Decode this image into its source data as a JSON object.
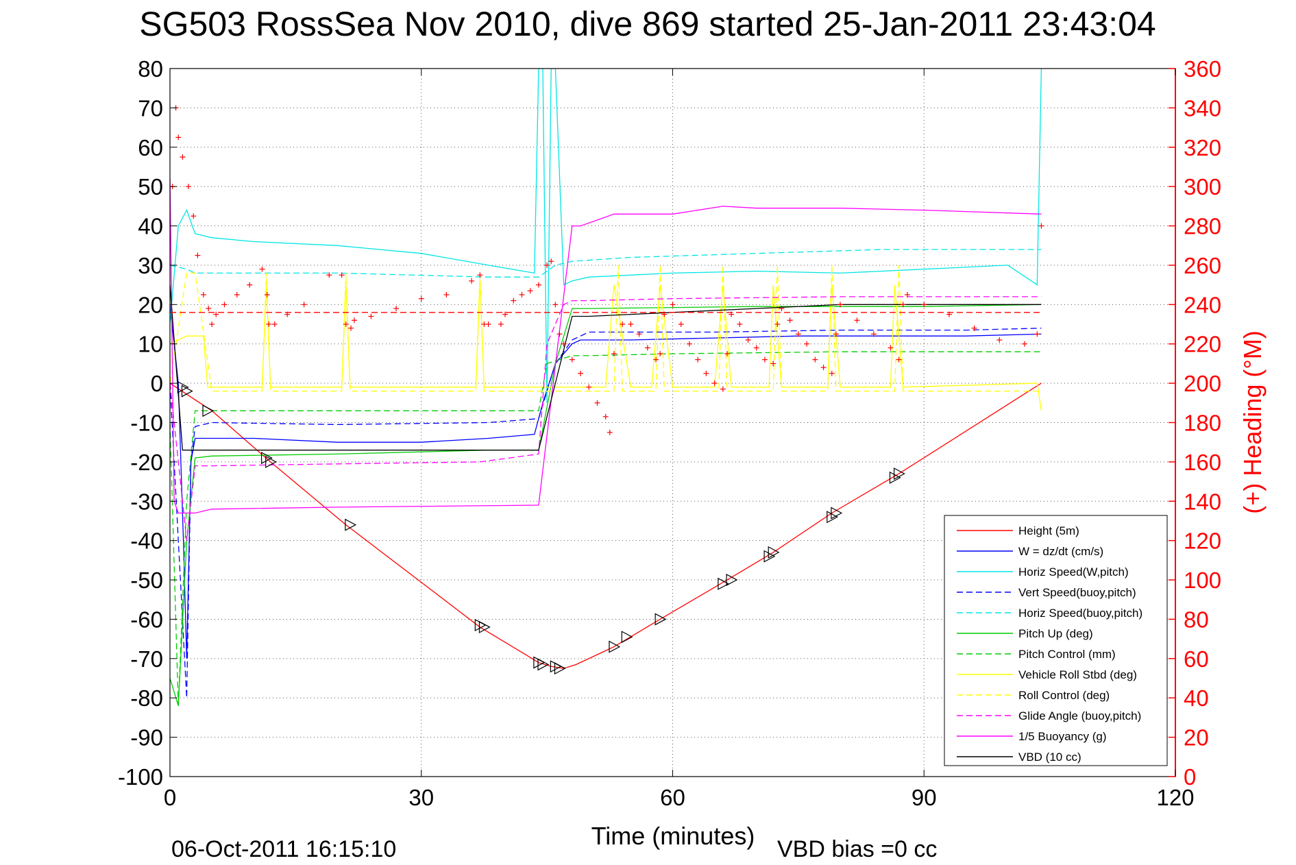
{
  "chart_data": {
    "type": "line",
    "title": "SG503 RossSea Nov 2010, dive 869 started 25-Jan-2011 23:43:04",
    "xlabel": "Time (minutes)",
    "ylabel": "",
    "y2label": "(+) Heading (°M)",
    "xlim": [
      0,
      120
    ],
    "ylim": [
      -100,
      80
    ],
    "y2lim": [
      0,
      360
    ],
    "x_ticks": [
      0,
      30,
      60,
      90,
      120
    ],
    "y_ticks": [
      80,
      70,
      60,
      50,
      40,
      30,
      20,
      10,
      0,
      -10,
      -20,
      -30,
      -40,
      -50,
      -60,
      -70,
      -80,
      -90,
      -100
    ],
    "y2_ticks": [
      360,
      340,
      320,
      300,
      280,
      260,
      240,
      220,
      200,
      180,
      160,
      140,
      120,
      100,
      80,
      60,
      40,
      20,
      0
    ],
    "grid": true,
    "legend_position": "bottom-right",
    "footer_date": "06-Oct-2011 16:15:10",
    "vbd_bias": "VBD bias =0 cc",
    "series": [
      {
        "name": "Height (5m)",
        "color": "#ff0000",
        "style": "solid",
        "x": [
          0,
          5,
          12,
          21,
          37,
          44,
          45.5,
          47,
          48.5,
          53,
          58.5,
          66.5,
          72,
          79,
          87,
          104
        ],
        "y": [
          0,
          -7,
          -20,
          -36,
          -62,
          -71,
          -72,
          -72.5,
          -71.5,
          -67,
          -60,
          -50,
          -43,
          -33,
          -23,
          0
        ]
      },
      {
        "name": "W = dz/dt (cm/s)",
        "color": "#0000ff",
        "style": "solid",
        "x": [
          0,
          1,
          1.6,
          2,
          2.5,
          3,
          5,
          10,
          20,
          30,
          38,
          43.5,
          44.5,
          46,
          48,
          49,
          55,
          65,
          75,
          85,
          95,
          104
        ],
        "y": [
          20,
          0,
          -40,
          -70,
          -20,
          -14,
          -14,
          -14,
          -15,
          -15,
          -14,
          -13,
          -5,
          5,
          10,
          11,
          11,
          11.5,
          12,
          12,
          12,
          12.5
        ]
      },
      {
        "name": "Horiz Speed(W,pitch)",
        "color": "#00e5e5",
        "style": "solid",
        "x": [
          0,
          1,
          2,
          3,
          5,
          10,
          20,
          30,
          38,
          43.5,
          44,
          44.5,
          45,
          45.5,
          46,
          47,
          48,
          50,
          60,
          70,
          80,
          90,
          100,
          103.5,
          104
        ],
        "y": [
          15,
          40,
          44,
          38,
          37,
          36,
          35,
          33,
          30,
          28,
          80,
          80,
          -5,
          80,
          80,
          25,
          26,
          27,
          28,
          28.5,
          28,
          29,
          30,
          25,
          80
        ]
      },
      {
        "name": "Vert Speed(buoy,pitch)",
        "color": "#0000ff",
        "style": "dashed",
        "x": [
          0,
          1.5,
          2,
          2.5,
          3,
          5,
          20,
          38,
          44,
          46,
          48,
          50,
          65,
          80,
          95,
          104
        ],
        "y": [
          0,
          -60,
          -80,
          -20,
          -11,
          -10,
          -10.5,
          -10,
          -9,
          5,
          11,
          13,
          13,
          13.5,
          13.5,
          14
        ]
      },
      {
        "name": "Horiz Speed(buoy,pitch)",
        "color": "#00e5e5",
        "style": "dashed",
        "x": [
          0,
          2,
          3,
          5,
          20,
          38,
          44,
          46,
          48,
          55,
          70,
          85,
          104
        ],
        "y": [
          30,
          29,
          28,
          28,
          28,
          27,
          27,
          30,
          31,
          32,
          33,
          34,
          34
        ]
      },
      {
        "name": "Pitch Up (deg)",
        "color": "#00cc00",
        "style": "solid",
        "x": [
          0,
          1,
          2,
          3,
          5,
          20,
          38,
          44,
          46,
          48,
          50,
          70,
          90,
          104
        ],
        "y": [
          -75,
          -82,
          -40,
          -19,
          -18.5,
          -18,
          -17,
          -17,
          5,
          19,
          19,
          19.5,
          19.5,
          20
        ]
      },
      {
        "name": "Pitch Control (mm)",
        "color": "#00cc00",
        "style": "dashed",
        "x": [
          0,
          1,
          2,
          3,
          5,
          20,
          44,
          45,
          48,
          50,
          60,
          80,
          104
        ],
        "y": [
          -10,
          -82,
          -30,
          -7,
          -7,
          -7,
          -7,
          5,
          7,
          7,
          7.5,
          8,
          8
        ]
      },
      {
        "name": "Vehicle Roll Stbd (deg)",
        "color": "#ffff00",
        "style": "solid",
        "x": [
          0,
          2,
          2.5,
          4,
          4.5,
          11,
          11.5,
          12,
          20.5,
          21,
          21.5,
          36.5,
          37,
          37.5,
          44,
          46,
          52,
          53,
          55,
          57.5,
          58.5,
          60,
          65,
          66,
          67,
          71.5,
          72,
          73,
          78.5,
          79,
          80,
          86,
          86.5,
          87.5,
          103.5,
          104
        ],
        "y": [
          10,
          12,
          12,
          12,
          -1,
          -1,
          25,
          -1,
          -1,
          25,
          -1,
          -1,
          26,
          -1,
          -1,
          -1,
          -1,
          25,
          -1,
          -1,
          25,
          -1,
          -1,
          25,
          -1,
          -1,
          25,
          -1,
          -1,
          25,
          -1,
          -1,
          25,
          -1,
          0,
          -7
        ]
      },
      {
        "name": "Roll Control (deg)",
        "color": "#ffff00",
        "style": "dashed",
        "x": [
          0,
          2,
          3,
          5,
          11,
          11.5,
          12,
          20.5,
          21,
          21.5,
          36.5,
          37,
          37.5,
          44,
          53,
          53.5,
          54,
          58,
          58.5,
          59,
          65.5,
          66,
          66.5,
          72,
          72.5,
          73,
          78.5,
          79,
          79.5,
          86.5,
          87,
          87.5,
          104
        ],
        "y": [
          0,
          28,
          28,
          -2,
          -2,
          28,
          -2,
          -2,
          28,
          -2,
          -2,
          28,
          -2,
          -2,
          -2,
          30,
          -2,
          -2,
          30,
          -2,
          -2,
          30,
          -2,
          -2,
          30,
          -2,
          -2,
          30,
          -2,
          -2,
          30,
          -2,
          -2
        ]
      },
      {
        "name": "Glide Angle (buoy,pitch)",
        "color": "#ff00ff",
        "style": "dashed",
        "x": [
          0,
          1.5,
          2,
          3,
          5,
          20,
          37,
          44,
          45,
          47,
          48,
          50,
          60,
          80,
          104
        ],
        "y": [
          0,
          -30,
          -40,
          -21,
          -21,
          -20.5,
          -20,
          -18,
          10,
          20,
          21,
          21,
          21.5,
          22,
          22
        ]
      },
      {
        "name": "1/5 Buoyancy (g)",
        "color": "#ff00ff",
        "style": "solid",
        "x": [
          0,
          0.5,
          1,
          2,
          3,
          5,
          20,
          44,
          48,
          49,
          53,
          60,
          66,
          70,
          80,
          90,
          104
        ],
        "y": [
          52,
          -30,
          -33,
          -33,
          -33,
          -32,
          -31.5,
          -31,
          40,
          40,
          43,
          43,
          45,
          44.5,
          44.5,
          44,
          43
        ]
      },
      {
        "name": "VBD (10 cc)",
        "color": "#000000",
        "style": "solid",
        "x": [
          0,
          1.5,
          2,
          3,
          5,
          20,
          44,
          48,
          49,
          50,
          60,
          70,
          80,
          90,
          104
        ],
        "y": [
          25,
          -17,
          -17,
          -17,
          -17,
          -17,
          -17,
          17,
          17,
          17,
          18,
          19,
          20,
          20,
          20
        ]
      },
      {
        "name": "",
        "color": "#ff0000",
        "style": "dashed",
        "x": [
          0,
          104
        ],
        "y": [
          18,
          18
        ]
      }
    ],
    "heading": {
      "color": "#ff0000",
      "x": [
        0.3,
        0.7,
        1.0,
        1.5,
        2.2,
        2.8,
        3.3,
        4.0,
        4.6,
        5.0,
        5.5,
        6.5,
        8.0,
        9.5,
        11.0,
        11.6,
        11.8,
        12.5,
        14,
        16,
        19,
        20.5,
        21,
        21.6,
        22,
        24,
        27,
        30,
        33,
        36,
        37,
        37.5,
        38,
        39.5,
        40,
        41,
        42,
        43,
        44,
        45,
        45.5,
        46,
        46.5,
        47,
        48,
        49,
        50,
        51,
        52,
        52.5,
        53,
        54,
        55,
        56,
        57,
        58,
        58.5,
        59,
        60,
        61,
        62,
        63,
        64,
        65,
        66,
        66.5,
        67,
        68,
        69,
        70,
        71,
        72,
        72.5,
        73,
        74,
        75,
        76,
        77,
        78,
        79,
        79.5,
        80,
        82,
        84,
        86,
        87,
        87.5,
        88,
        90,
        93,
        96,
        99,
        102,
        103.5,
        104
      ],
      "y": [
        300,
        340,
        325,
        315,
        300,
        285,
        265,
        245,
        238,
        230,
        235,
        240,
        245,
        250,
        258,
        245,
        230,
        230,
        235,
        240,
        255,
        255,
        230,
        228,
        232,
        234,
        238,
        243,
        245,
        252,
        255,
        230,
        230,
        230,
        235,
        242,
        245,
        247,
        250,
        260,
        262,
        240,
        225,
        220,
        212,
        205,
        198,
        190,
        183,
        175,
        215,
        230,
        230,
        225,
        218,
        212,
        215,
        235,
        240,
        230,
        220,
        212,
        205,
        200,
        197,
        215,
        235,
        230,
        222,
        218,
        212,
        210,
        230,
        238,
        232,
        225,
        220,
        212,
        208,
        205,
        225,
        240,
        232,
        225,
        218,
        212,
        240,
        245,
        240,
        235,
        228,
        222,
        220,
        225,
        280
      ]
    },
    "markers": {
      "type": "triangle",
      "color": "#000000",
      "x": [
        1.5,
        2,
        4.5,
        11.5,
        12,
        21.5,
        37,
        37.5,
        44,
        44.5,
        46,
        46.5,
        53,
        54.5,
        58.5,
        66,
        67,
        71.5,
        72,
        79,
        79.5,
        86.5,
        87
      ],
      "y": [
        -1,
        -2,
        -7,
        -19,
        -20,
        -36,
        -61.5,
        -62,
        -71,
        -71.5,
        -72,
        -72.5,
        -67,
        -64.5,
        -60,
        -51,
        -50,
        -44,
        -43,
        -34,
        -33,
        -24,
        -23
      ]
    }
  }
}
